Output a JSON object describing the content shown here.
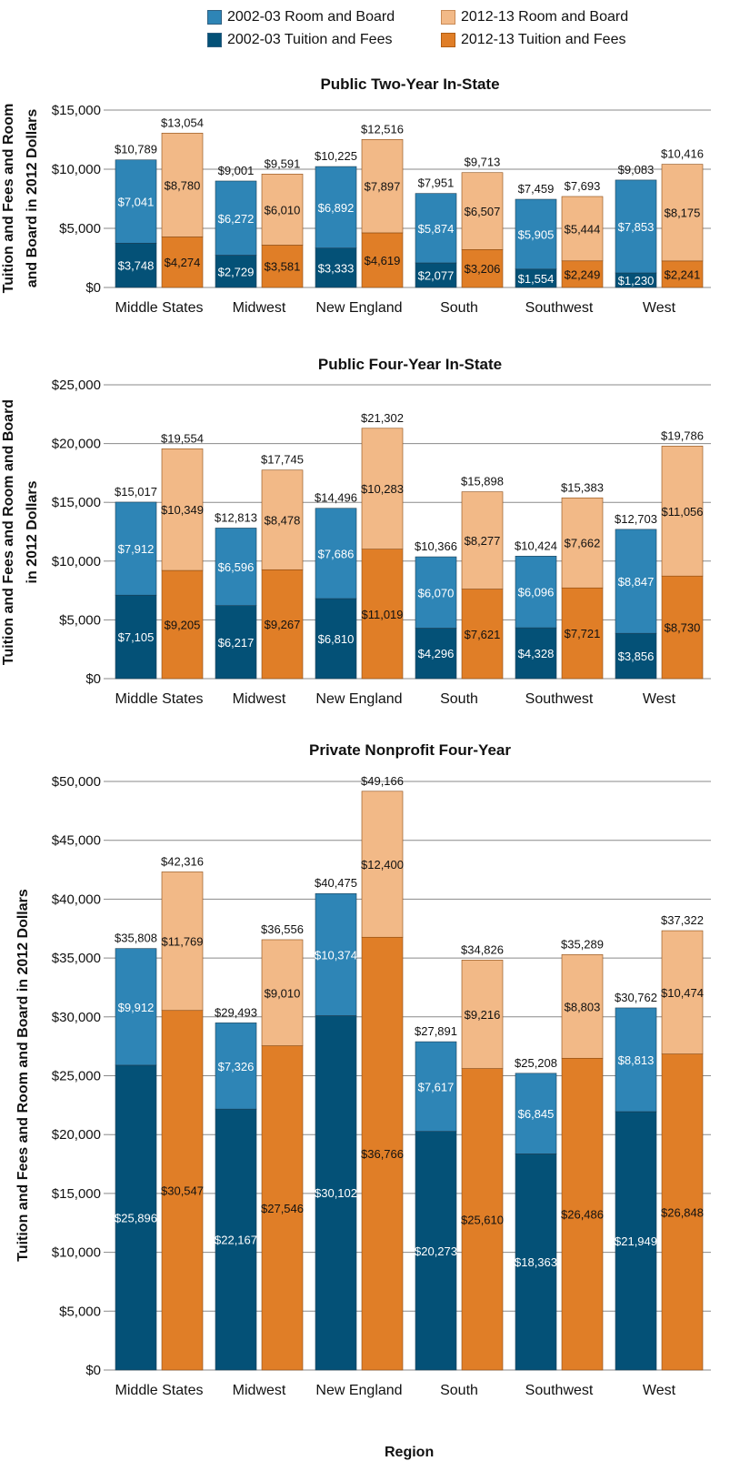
{
  "colors": {
    "room_2002": "#2e85b6",
    "tuition_2002": "#045177",
    "room_2012": "#f2b987",
    "tuition_2012": "#e07e27",
    "grid": "#8a8a8a"
  },
  "legend": [
    {
      "label": "2002-03 Room and Board",
      "color_key": "room_2002"
    },
    {
      "label": "2012-13 Room and Board",
      "color_key": "room_2012"
    },
    {
      "label": "2002-03 Tuition and Fees",
      "color_key": "tuition_2002"
    },
    {
      "label": "2012-13 Tuition and Fees",
      "color_key": "tuition_2012"
    }
  ],
  "x_axis_label": "Region",
  "chart_data": [
    {
      "type": "bar",
      "title": "Public Two-Year In-State",
      "ylabel": "Tuition and Fees and Room and Board in 2012 Dollars",
      "ylabel_lines": [
        "Tuition and Fees and Room",
        "and Board in 2012 Dollars"
      ],
      "ylim": [
        0,
        15000
      ],
      "yticks": [
        0,
        5000,
        10000,
        15000
      ],
      "ytick_labels": [
        "$0",
        "$5,000",
        "$10,000",
        "$15,000"
      ],
      "categories": [
        "Middle States",
        "Midwest",
        "New England",
        "South",
        "Southwest",
        "West"
      ],
      "series": [
        {
          "name": "2002-03 Tuition and Fees",
          "color_key": "tuition_2002",
          "values": [
            3748,
            2729,
            3333,
            2077,
            1554,
            1230
          ],
          "labels": [
            "$3,748",
            "$2,729",
            "$3,333",
            "$2,077",
            "$1,554",
            "$1,230"
          ]
        },
        {
          "name": "2002-03 Room and Board",
          "color_key": "room_2002",
          "values": [
            7041,
            6272,
            6892,
            5874,
            5905,
            7853
          ],
          "labels": [
            "$7,041",
            "$6,272",
            "$6,892",
            "$5,874",
            "$5,905",
            "$7,853"
          ]
        },
        {
          "name": "2012-13 Tuition and Fees",
          "color_key": "tuition_2012",
          "values": [
            4274,
            3581,
            4619,
            3206,
            2249,
            2241
          ],
          "labels": [
            "$4,274",
            "$3,581",
            "$4,619",
            "$3,206",
            "$2,249",
            "$2,241"
          ]
        },
        {
          "name": "2012-13 Room and Board",
          "color_key": "room_2012",
          "values": [
            8780,
            6010,
            7897,
            6507,
            5444,
            8175
          ],
          "labels": [
            "$8,780",
            "$6,010",
            "$7,897",
            "$6,507",
            "$5,444",
            "$8,175"
          ]
        }
      ],
      "totals_2002": [
        10789,
        9001,
        10225,
        7951,
        7459,
        9083
      ],
      "totals_2002_labels": [
        "$10,789",
        "$9,001",
        "$10,225",
        "$7,951",
        "$7,459",
        "$9,083"
      ],
      "totals_2012": [
        13054,
        9591,
        12516,
        9713,
        7693,
        10416
      ],
      "totals_2012_labels": [
        "$13,054",
        "$9,591",
        "$12,516",
        "$9,713",
        "$7,693",
        "$10,416"
      ]
    },
    {
      "type": "bar",
      "title": "Public Four-Year In-State",
      "ylabel": "Tuition and Fees and Room and Board in 2012 Dollars",
      "ylabel_lines": [
        "Tuition and Fees and Room and Board",
        "in 2012 Dollars"
      ],
      "ylim": [
        0,
        25000
      ],
      "yticks": [
        0,
        5000,
        10000,
        15000,
        20000,
        25000
      ],
      "ytick_labels": [
        "$0",
        "$5,000",
        "$10,000",
        "$15,000",
        "$20,000",
        "$25,000"
      ],
      "categories": [
        "Middle States",
        "Midwest",
        "New England",
        "South",
        "Southwest",
        "West"
      ],
      "series": [
        {
          "name": "2002-03 Tuition and Fees",
          "color_key": "tuition_2002",
          "values": [
            7105,
            6217,
            6810,
            4296,
            4328,
            3856
          ],
          "labels": [
            "$7,105",
            "$6,217",
            "$6,810",
            "$4,296",
            "$4,328",
            "$3,856"
          ]
        },
        {
          "name": "2002-03 Room and Board",
          "color_key": "room_2002",
          "values": [
            7912,
            6596,
            7686,
            6070,
            6096,
            8847
          ],
          "labels": [
            "$7,912",
            "$6,596",
            "$7,686",
            "$6,070",
            "$6,096",
            "$8,847"
          ]
        },
        {
          "name": "2012-13 Tuition and Fees",
          "color_key": "tuition_2012",
          "values": [
            9205,
            9267,
            11019,
            7621,
            7721,
            8730
          ],
          "labels": [
            "$9,205",
            "$9,267",
            "$11,019",
            "$7,621",
            "$7,721",
            "$8,730"
          ]
        },
        {
          "name": "2012-13 Room and Board",
          "color_key": "room_2012",
          "values": [
            10349,
            8478,
            10283,
            8277,
            7662,
            11056
          ],
          "labels": [
            "$10,349",
            "$8,478",
            "$10,283",
            "$8,277",
            "$7,662",
            "$11,056"
          ]
        }
      ],
      "totals_2002": [
        15017,
        12813,
        14496,
        10366,
        10424,
        12703
      ],
      "totals_2002_labels": [
        "$15,017",
        "$12,813",
        "$14,496",
        "$10,366",
        "$10,424",
        "$12,703"
      ],
      "totals_2012": [
        19554,
        17745,
        21302,
        15898,
        15383,
        19786
      ],
      "totals_2012_labels": [
        "$19,554",
        "$17,745",
        "$21,302",
        "$15,898",
        "$15,383",
        "$19,786"
      ]
    },
    {
      "type": "bar",
      "title": "Private Nonprofit Four-Year",
      "ylabel": "Tuition and Fees and Room and Board in 2012 Dollars",
      "ylabel_lines": [
        "Tuition and Fees and Room and Board in 2012 Dollars"
      ],
      "ylim": [
        0,
        50000
      ],
      "yticks": [
        0,
        5000,
        10000,
        15000,
        20000,
        25000,
        30000,
        35000,
        40000,
        45000,
        50000
      ],
      "ytick_labels": [
        "$0",
        "$5,000",
        "$10,000",
        "$15,000",
        "$20,000",
        "$25,000",
        "$30,000",
        "$35,000",
        "$40,000",
        "$45,000",
        "$50,000"
      ],
      "categories": [
        "Middle States",
        "Midwest",
        "New England",
        "South",
        "Southwest",
        "West"
      ],
      "series": [
        {
          "name": "2002-03 Tuition and Fees",
          "color_key": "tuition_2002",
          "values": [
            25896,
            22167,
            30102,
            20273,
            18363,
            21949
          ],
          "labels": [
            "$25,896",
            "$22,167",
            "$30,102",
            "$20,273",
            "$18,363",
            "$21,949"
          ]
        },
        {
          "name": "2002-03 Room and Board",
          "color_key": "room_2002",
          "values": [
            9912,
            7326,
            10374,
            7617,
            6845,
            8813
          ],
          "labels": [
            "$9,912",
            "$7,326",
            "$10,374",
            "$7,617",
            "$6,845",
            "$8,813"
          ]
        },
        {
          "name": "2012-13 Tuition and Fees",
          "color_key": "tuition_2012",
          "values": [
            30547,
            27546,
            36766,
            25610,
            26486,
            26848
          ],
          "labels": [
            "$30,547",
            "$27,546",
            "$36,766",
            "$25,610",
            "$26,486",
            "$26,848"
          ]
        },
        {
          "name": "2012-13 Room and Board",
          "color_key": "room_2012",
          "values": [
            11769,
            9010,
            12400,
            9216,
            8803,
            10474
          ],
          "labels": [
            "$11,769",
            "$9,010",
            "$12,400",
            "$9,216",
            "$8,803",
            "$10,474"
          ]
        }
      ],
      "totals_2002": [
        35808,
        29493,
        40475,
        27891,
        25208,
        30762
      ],
      "totals_2002_labels": [
        "$35,808",
        "$29,493",
        "$40,475",
        "$27,891",
        "$25,208",
        "$30,762"
      ],
      "totals_2012": [
        42316,
        36556,
        49166,
        34826,
        35289,
        37322
      ],
      "totals_2012_labels": [
        "$42,316",
        "$36,556",
        "$49,166",
        "$34,826",
        "$35,289",
        "$37,322"
      ]
    }
  ]
}
